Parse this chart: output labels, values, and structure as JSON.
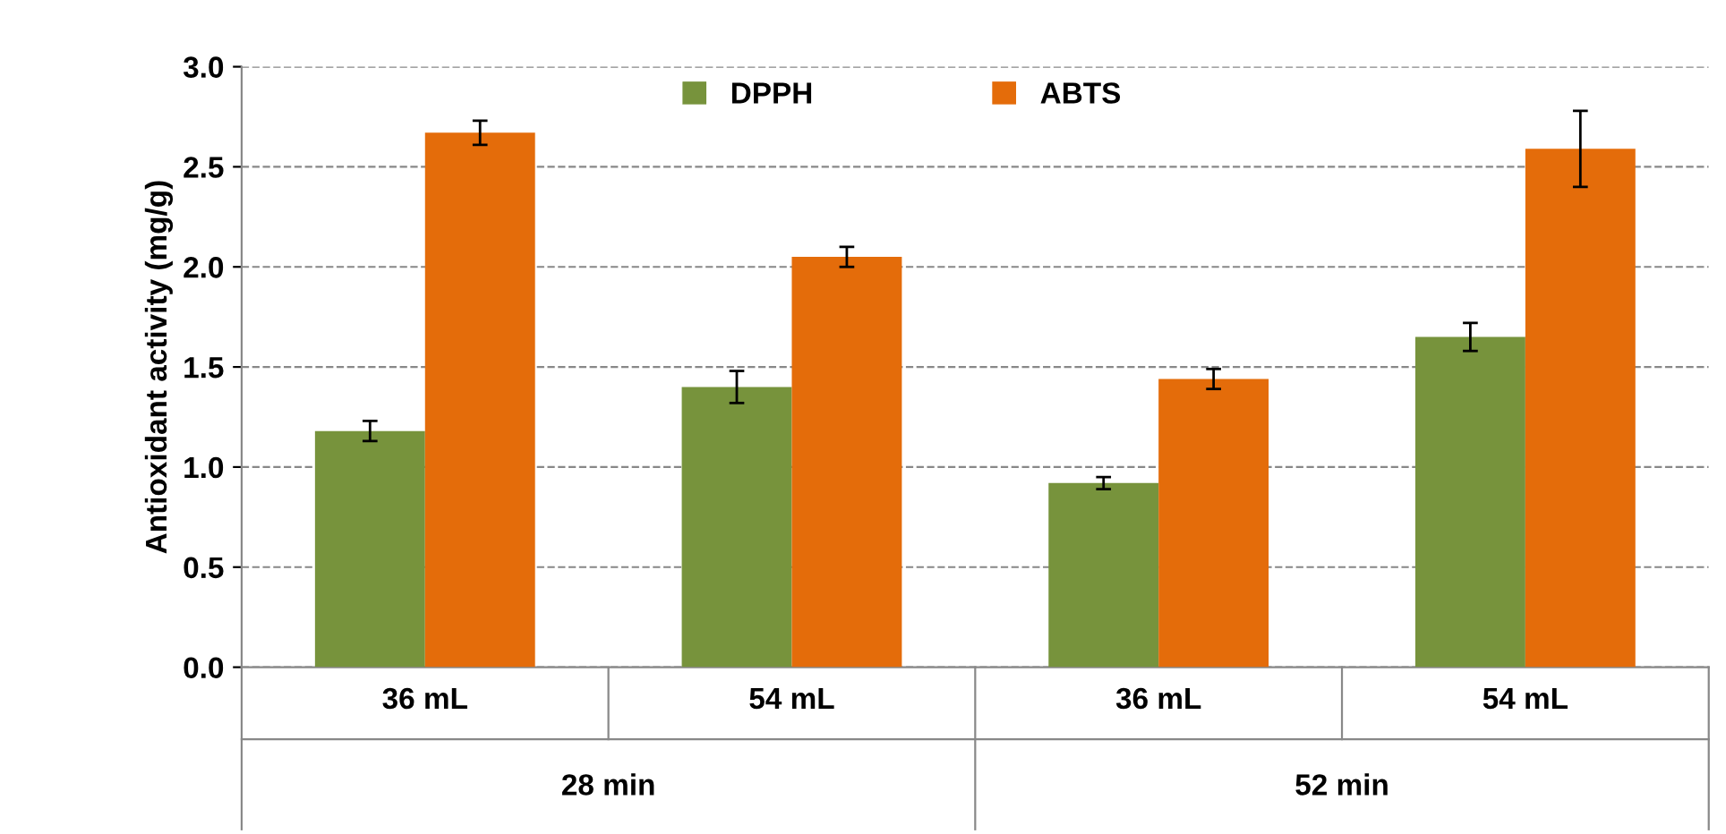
{
  "chart_data": {
    "type": "bar",
    "ylabel": "Antioxidant activity (mg/g)",
    "categories": [
      "36 mL",
      "54 mL",
      "36 mL",
      "54 mL"
    ],
    "annotations": [
      "28 min",
      "52 min"
    ],
    "series": [
      {
        "name": "DPPH",
        "color": "#77933c",
        "values": [
          1.18,
          1.4,
          0.92,
          1.65
        ],
        "errors": [
          0.05,
          0.08,
          0.03,
          0.07
        ]
      },
      {
        "name": "ABTS",
        "color": "#e46c0a",
        "values": [
          2.67,
          2.05,
          1.44,
          2.59
        ],
        "errors": [
          0.06,
          0.05,
          0.05,
          0.19
        ]
      }
    ],
    "ylim": [
      0,
      3.0
    ],
    "yticks": [
      {
        "value": 0,
        "label": "0.0"
      },
      {
        "value": 0.5,
        "label": "0.5"
      },
      {
        "value": 1,
        "label": "1.0"
      },
      {
        "value": 1.5,
        "label": "1.5"
      },
      {
        "value": 2,
        "label": "2.0"
      },
      {
        "value": 2.5,
        "label": "2.5"
      },
      {
        "value": 3,
        "label": "3.0"
      }
    ],
    "grid": "y",
    "legend": "top"
  }
}
